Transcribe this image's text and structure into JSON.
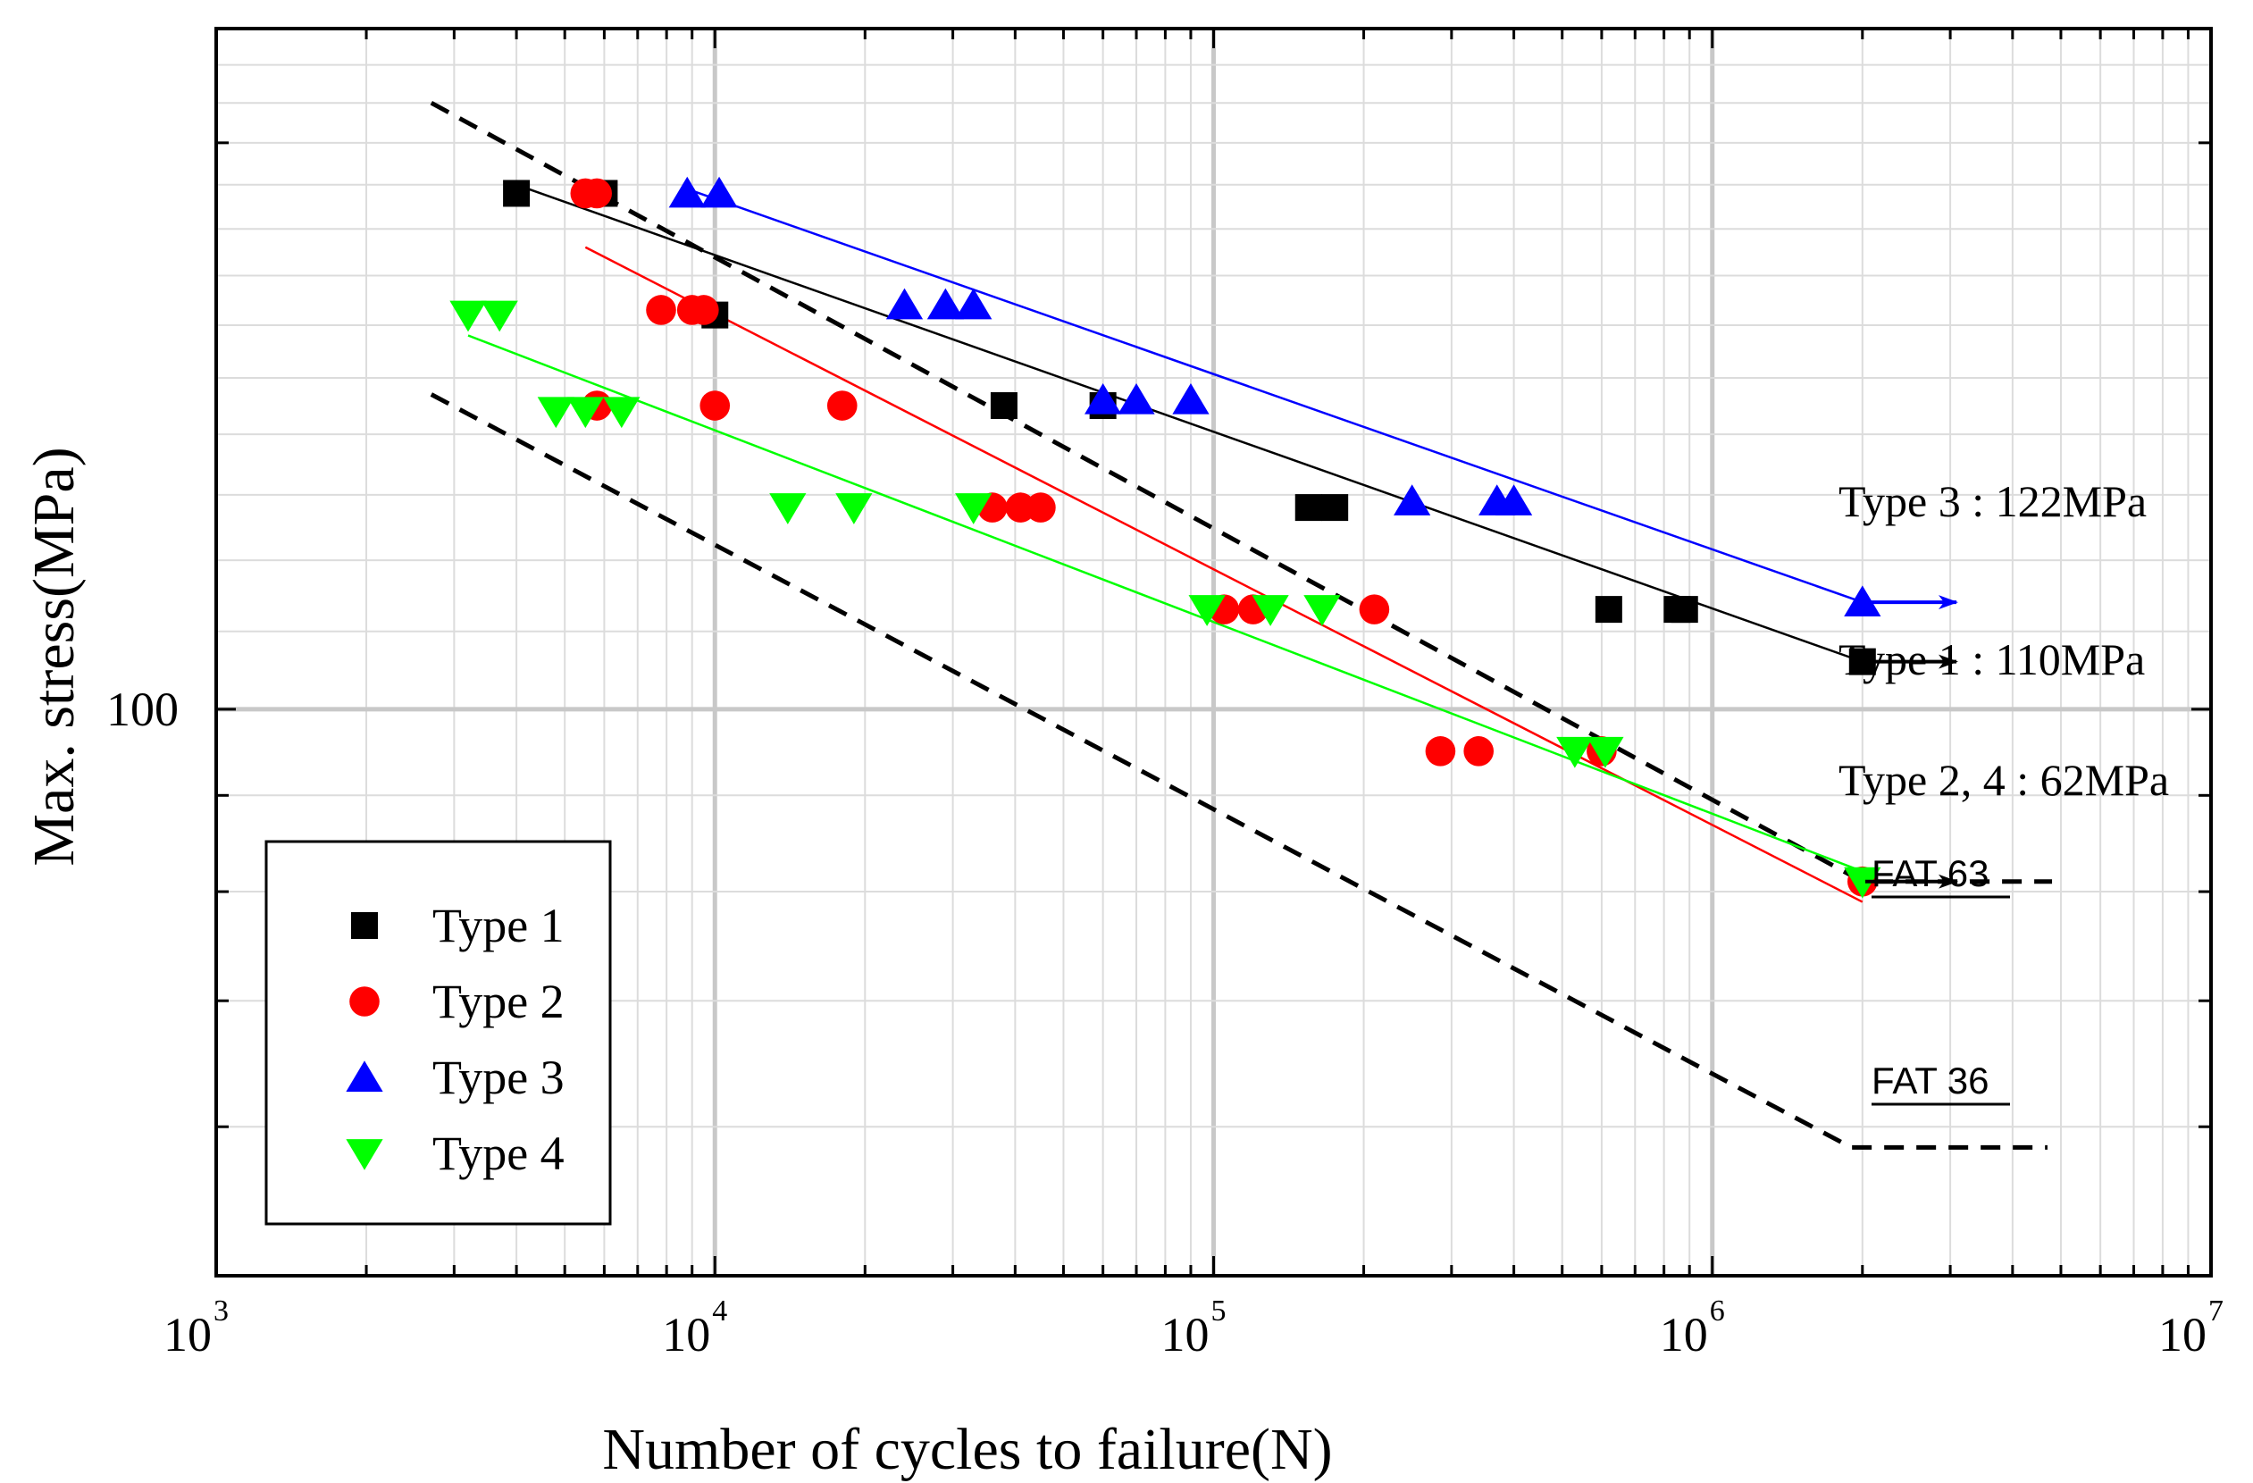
{
  "chart_data": {
    "type": "scatter",
    "xscale": "log",
    "yscale": "log",
    "xlim": [
      1000,
      10000000
    ],
    "ylim": [
      50,
      230
    ],
    "xlabel": "Number of cycles to failure(N)",
    "ylabel": "Max. stress(MPa)",
    "x_tick_labels": [
      {
        "value": 1000,
        "base": "10",
        "exp": "3"
      },
      {
        "value": 10000,
        "base": "10",
        "exp": "4"
      },
      {
        "value": 100000,
        "base": "10",
        "exp": "5"
      },
      {
        "value": 1000000,
        "base": "10",
        "exp": "6"
      },
      {
        "value": 10000000,
        "base": "10",
        "exp": "7"
      }
    ],
    "y_tick_labels": [
      {
        "value": 100,
        "label": "100"
      }
    ],
    "legend": {
      "placement": "bottom-left",
      "entries": [
        {
          "label": "Type 1",
          "marker": "square",
          "color": "#000000"
        },
        {
          "label": "Type 2",
          "marker": "circle",
          "color": "#ff0000"
        },
        {
          "label": "Type 3",
          "marker": "triangle-up",
          "color": "#0000ff"
        },
        {
          "label": "Type 4",
          "marker": "triangle-down",
          "color": "#00ff00"
        }
      ]
    },
    "series": [
      {
        "name": "Type 1",
        "marker": "square",
        "color": "#000000",
        "points": [
          [
            4000,
            188
          ],
          [
            6000,
            188
          ],
          [
            10000,
            162
          ],
          [
            38000,
            145
          ],
          [
            60000,
            145
          ],
          [
            155000,
            128
          ],
          [
            175000,
            128
          ],
          [
            620000,
            113
          ],
          [
            850000,
            113
          ],
          [
            880000,
            113
          ],
          [
            2000000,
            106
          ]
        ],
        "fit": [
          [
            4000,
            190
          ],
          [
            2000000,
            106
          ]
        ]
      },
      {
        "name": "Type 2",
        "marker": "circle",
        "color": "#ff0000",
        "points": [
          [
            5500,
            188
          ],
          [
            5800,
            188
          ],
          [
            5800,
            145
          ],
          [
            7800,
            163
          ],
          [
            9000,
            163
          ],
          [
            9500,
            163
          ],
          [
            10000,
            145
          ],
          [
            18000,
            145
          ],
          [
            36000,
            128
          ],
          [
            41000,
            128
          ],
          [
            45000,
            128
          ],
          [
            105000,
            113
          ],
          [
            120000,
            113
          ],
          [
            210000,
            113
          ],
          [
            285000,
            95
          ],
          [
            340000,
            95
          ],
          [
            600000,
            95
          ],
          [
            2000000,
            81
          ]
        ],
        "fit": [
          [
            5500,
            176
          ],
          [
            2000000,
            79
          ]
        ]
      },
      {
        "name": "Type 3",
        "marker": "triangle-up",
        "color": "#0000ff",
        "points": [
          [
            8800,
            188
          ],
          [
            10200,
            188
          ],
          [
            24000,
            164
          ],
          [
            29000,
            164
          ],
          [
            33000,
            164
          ],
          [
            60000,
            146
          ],
          [
            70000,
            146
          ],
          [
            90000,
            146
          ],
          [
            250000,
            129
          ],
          [
            370000,
            129
          ],
          [
            400000,
            129
          ],
          [
            2000000,
            114
          ]
        ],
        "fit": [
          [
            8800,
            189
          ],
          [
            2000000,
            114
          ]
        ]
      },
      {
        "name": "Type 4",
        "marker": "triangle-down",
        "color": "#00ff00",
        "points": [
          [
            3200,
            162
          ],
          [
            3700,
            162
          ],
          [
            4800,
            144
          ],
          [
            5500,
            144
          ],
          [
            6500,
            144
          ],
          [
            14000,
            128
          ],
          [
            19000,
            128
          ],
          [
            33000,
            128
          ],
          [
            97000,
            113
          ],
          [
            130000,
            113
          ],
          [
            165000,
            113
          ],
          [
            530000,
            95
          ],
          [
            610000,
            95
          ],
          [
            2000000,
            81
          ]
        ],
        "fit": [
          [
            3200,
            158
          ],
          [
            2000000,
            82
          ]
        ]
      }
    ],
    "reference_lines": [
      {
        "name": "FAT 63",
        "style": "dashed",
        "color": "#000000",
        "points": [
          [
            2700,
            210
          ],
          [
            2000000,
            81
          ],
          [
            4800000,
            81
          ]
        ]
      },
      {
        "name": "FAT 36",
        "style": "dashed",
        "color": "#000000",
        "points": [
          [
            2700,
            147
          ],
          [
            1900000,
            58.5
          ],
          [
            4700000,
            58.5
          ]
        ]
      }
    ],
    "annotations": [
      {
        "text": "Type 3 : 122MPa",
        "arrow_color": "#0000ff",
        "arrow_y": 114
      },
      {
        "text": "Type 1 : 110MPa",
        "arrow_color": "#000000",
        "arrow_y": 106
      },
      {
        "text": "Type 2, 4 : 62MPa",
        "arrow_color": "#000000",
        "arrow_y": 81
      }
    ],
    "fat_labels": [
      "FAT 63",
      "FAT 36"
    ]
  }
}
